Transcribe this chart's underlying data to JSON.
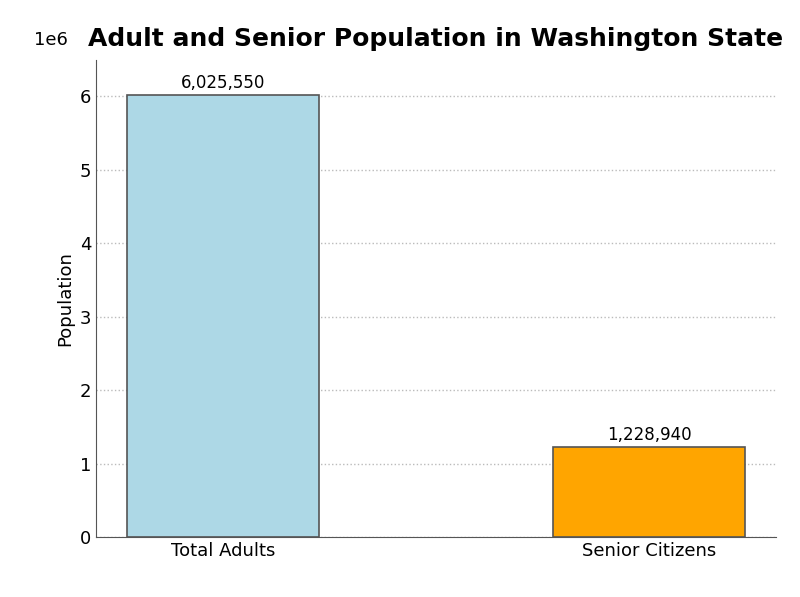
{
  "title": "Adult and Senior Population in Washington State",
  "categories": [
    "Total Adults",
    "Senior Citizens"
  ],
  "values": [
    6025550,
    1228940
  ],
  "bar_colors": [
    "#ADD8E6",
    "#FFA500"
  ],
  "bar_labels": [
    "6,025,550",
    "1,228,940"
  ],
  "ylabel": "Population",
  "ylim": [
    0,
    6500000
  ],
  "yticks": [
    0,
    1000000,
    2000000,
    3000000,
    4000000,
    5000000,
    6000000
  ],
  "ytick_labels": [
    "0",
    "1",
    "2",
    "3",
    "4",
    "5",
    "6"
  ],
  "title_fontsize": 18,
  "label_fontsize": 13,
  "tick_fontsize": 13,
  "bar_label_fontsize": 12,
  "background_color": "#ffffff",
  "grid_color": "#bbbbbb",
  "bar_edge_color": "#555555",
  "bar_edge_width": 1.2,
  "bar_width": 0.45
}
